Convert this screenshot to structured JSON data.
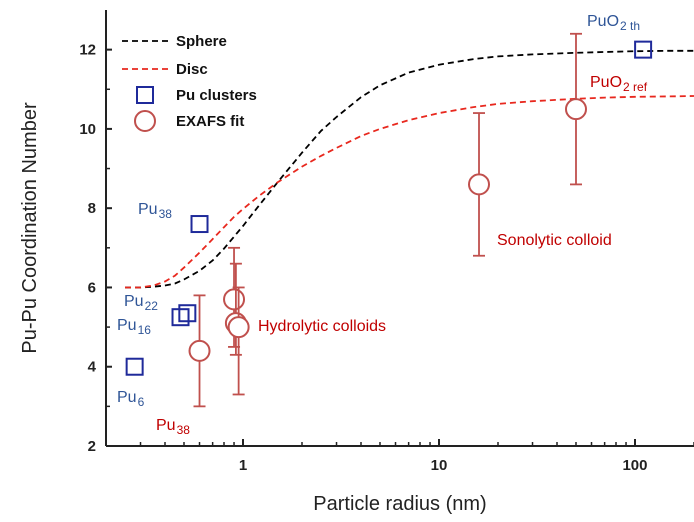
{
  "chart_data": {
    "type": "scatter",
    "xlabel": "Particle radius (nm)",
    "ylabel": "Pu-Pu Coordination Number",
    "xscale": "log",
    "xlim": [
      0.2,
      200
    ],
    "ylim": [
      2,
      13
    ],
    "x_ticks": [
      1,
      10,
      100
    ],
    "x_tick_labels": [
      "1",
      "10",
      "100"
    ],
    "y_ticks": [
      2,
      4,
      6,
      8,
      10,
      12
    ],
    "y_tick_labels": [
      "2",
      "4",
      "6",
      "8",
      "10",
      "12"
    ],
    "grid": false,
    "legend_position": "top-left",
    "legend": [
      {
        "label": "Sphere",
        "style": "dashed-line",
        "color": "#000000"
      },
      {
        "label": "Disc",
        "style": "dashed-line",
        "color": "#e8281e"
      },
      {
        "label": "Pu clusters",
        "style": "open-square",
        "color": "#1f2a9a"
      },
      {
        "label": "EXAFS fit",
        "style": "open-circle",
        "color": "#c0504d"
      }
    ],
    "series": [
      {
        "name": "Sphere",
        "kind": "line",
        "color": "#000000",
        "x": [
          0.25,
          0.3,
          0.35,
          0.4,
          0.45,
          0.5,
          0.6,
          0.7,
          0.8,
          0.9,
          1.0,
          1.2,
          1.5,
          2.0,
          2.5,
          3.0,
          4.0,
          5.0,
          7.0,
          10,
          15,
          20,
          30,
          50,
          70,
          100,
          150,
          200
        ],
        "y": [
          6.0,
          6.0,
          6.02,
          6.05,
          6.1,
          6.2,
          6.42,
          6.68,
          6.98,
          7.28,
          7.55,
          8.05,
          8.65,
          9.4,
          9.95,
          10.3,
          10.8,
          11.1,
          11.42,
          11.62,
          11.76,
          11.83,
          11.88,
          11.92,
          11.94,
          11.96,
          11.97,
          11.97
        ]
      },
      {
        "name": "Disc",
        "kind": "line",
        "color": "#e8281e",
        "x": [
          0.25,
          0.3,
          0.35,
          0.4,
          0.45,
          0.5,
          0.6,
          0.7,
          0.8,
          0.9,
          1.0,
          1.2,
          1.5,
          2.0,
          2.5,
          3.0,
          4.0,
          5.0,
          7.0,
          10,
          15,
          20,
          30,
          50,
          70,
          100,
          150,
          200
        ],
        "y": [
          6.0,
          6.0,
          6.05,
          6.15,
          6.3,
          6.5,
          6.88,
          7.22,
          7.52,
          7.78,
          7.98,
          8.3,
          8.65,
          9.05,
          9.32,
          9.52,
          9.82,
          10.0,
          10.22,
          10.4,
          10.55,
          10.63,
          10.7,
          10.76,
          10.79,
          10.81,
          10.82,
          10.83
        ]
      },
      {
        "name": "Pu clusters",
        "kind": "scatter",
        "marker": "square",
        "color": "#1f2a9a",
        "points": [
          {
            "x": 0.28,
            "y": 4.0,
            "label": "Pu6"
          },
          {
            "x": 0.48,
            "y": 5.25,
            "label": "Pu16"
          },
          {
            "x": 0.52,
            "y": 5.35,
            "label": "Pu22"
          },
          {
            "x": 0.6,
            "y": 7.6,
            "label": "Pu38"
          },
          {
            "x": 110,
            "y": 12.0,
            "label": "PuO2 th"
          }
        ]
      },
      {
        "name": "EXAFS fit",
        "kind": "scatter",
        "marker": "circle",
        "color": "#c0504d",
        "points": [
          {
            "x": 0.6,
            "y": 4.4,
            "err_low": 3.0,
            "err_high": 5.8
          },
          {
            "x": 0.9,
            "y": 5.7,
            "err_low": 4.5,
            "err_high": 7.0
          },
          {
            "x": 0.92,
            "y": 5.1,
            "err_low": 4.3,
            "err_high": 6.6
          },
          {
            "x": 0.95,
            "y": 5.0,
            "err_low": 3.3,
            "err_high": 6.0
          },
          {
            "x": 16,
            "y": 8.6,
            "err_low": 6.8,
            "err_high": 10.4
          },
          {
            "x": 50,
            "y": 10.5,
            "err_low": 8.6,
            "err_high": 12.4
          }
        ]
      }
    ],
    "annotations": [
      {
        "main": "Pu",
        "sub": "38",
        "color": "#2f5597"
      },
      {
        "main": "Pu",
        "sub": "22",
        "color": "#2f5597"
      },
      {
        "main": "Pu",
        "sub": "16",
        "color": "#2f5597"
      },
      {
        "main": "Pu",
        "sub": "6",
        "color": "#2f5597"
      },
      {
        "main": "Pu",
        "sub": "38",
        "color": "#c00000"
      },
      {
        "main": "PuO",
        "sub": "2 th",
        "color": "#2f5597"
      },
      {
        "main": "PuO",
        "sub": "2 ref",
        "color": "#c00000"
      },
      {
        "main": "Hydrolytic colloids",
        "sub": "",
        "color": "#c00000"
      },
      {
        "main": "Sonolytic colloid",
        "sub": "",
        "color": "#c00000"
      }
    ]
  }
}
